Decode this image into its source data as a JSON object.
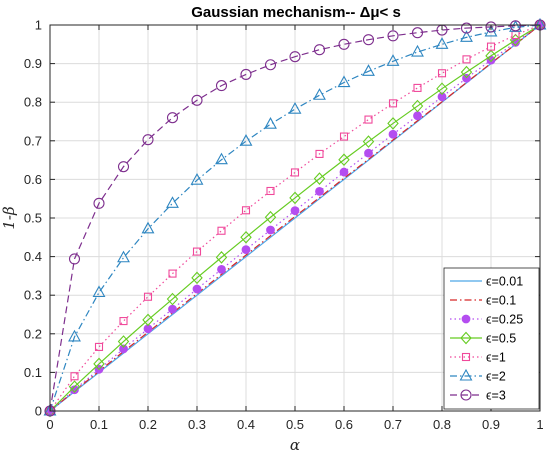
{
  "chart_data": {
    "type": "line",
    "title": "Gaussian mechanism-- Δμ< s",
    "xlabel": "α",
    "ylabel": "1-β",
    "xlim": [
      0,
      1
    ],
    "ylim": [
      0,
      1
    ],
    "grid": true,
    "legend_position": "bottom-right",
    "x_ticks": [
      "0",
      "0.1",
      "0.2",
      "0.3",
      "0.4",
      "0.5",
      "0.6",
      "0.7",
      "0.8",
      "0.9",
      "1"
    ],
    "y_ticks": [
      "0",
      "0.1",
      "0.2",
      "0.3",
      "0.4",
      "0.5",
      "0.6",
      "0.7",
      "0.8",
      "0.9",
      "1"
    ],
    "x": [
      0,
      0.05,
      0.1,
      0.15,
      0.2,
      0.25,
      0.3,
      0.35,
      0.4,
      0.45,
      0.5,
      0.55,
      0.6,
      0.65,
      0.7,
      0.75,
      0.8,
      0.85,
      0.9,
      0.95,
      1
    ],
    "series": [
      {
        "name": "ϵ=0.01",
        "color": "#4DA6E8",
        "dash": "solid",
        "marker": "none",
        "values": [
          0,
          0.05,
          0.1,
          0.15,
          0.2,
          0.25,
          0.3,
          0.35,
          0.4,
          0.45,
          0.5,
          0.55,
          0.6,
          0.65,
          0.7,
          0.75,
          0.8,
          0.85,
          0.9,
          0.95,
          1
        ]
      },
      {
        "name": "ϵ=0.1",
        "color": "#D62728",
        "dash": "dashdot",
        "marker": "none",
        "values": [
          0,
          0.052,
          0.103,
          0.154,
          0.204,
          0.254,
          0.304,
          0.354,
          0.404,
          0.454,
          0.504,
          0.553,
          0.603,
          0.652,
          0.702,
          0.752,
          0.801,
          0.851,
          0.901,
          0.95,
          1
        ]
      },
      {
        "name": "ϵ=0.25",
        "color": "#B44DF0",
        "dash": "dotted",
        "marker": "dot",
        "values": [
          0,
          0.055,
          0.108,
          0.161,
          0.213,
          0.264,
          0.316,
          0.367,
          0.418,
          0.469,
          0.519,
          0.569,
          0.619,
          0.668,
          0.717,
          0.765,
          0.814,
          0.862,
          0.909,
          0.955,
          1
        ]
      },
      {
        "name": "ϵ=0.5",
        "color": "#66CC22",
        "dash": "solid",
        "marker": "diamond",
        "values": [
          0,
          0.063,
          0.122,
          0.18,
          0.236,
          0.29,
          0.345,
          0.398,
          0.45,
          0.502,
          0.552,
          0.602,
          0.651,
          0.698,
          0.745,
          0.79,
          0.835,
          0.878,
          0.92,
          0.961,
          1
        ]
      },
      {
        "name": "ϵ=1",
        "color": "#F0489A",
        "dash": "dotted",
        "marker": "square",
        "values": [
          0,
          0.09,
          0.166,
          0.233,
          0.296,
          0.356,
          0.413,
          0.467,
          0.52,
          0.57,
          0.618,
          0.666,
          0.711,
          0.755,
          0.797,
          0.837,
          0.875,
          0.911,
          0.944,
          0.974,
          1
        ]
      },
      {
        "name": "ϵ=2",
        "color": "#2E86C1",
        "dash": "dashdot",
        "marker": "triangle",
        "values": [
          0,
          0.192,
          0.307,
          0.397,
          0.472,
          0.538,
          0.598,
          0.651,
          0.699,
          0.743,
          0.782,
          0.818,
          0.851,
          0.88,
          0.906,
          0.93,
          0.95,
          0.968,
          0.982,
          0.994,
          1
        ]
      },
      {
        "name": "ϵ=3",
        "color": "#7E2F8E",
        "dash": "dashed",
        "marker": "circle",
        "values": [
          0,
          0.394,
          0.538,
          0.633,
          0.703,
          0.76,
          0.805,
          0.843,
          0.872,
          0.897,
          0.918,
          0.936,
          0.95,
          0.962,
          0.972,
          0.98,
          0.987,
          0.992,
          0.995,
          0.998,
          1
        ]
      }
    ]
  }
}
